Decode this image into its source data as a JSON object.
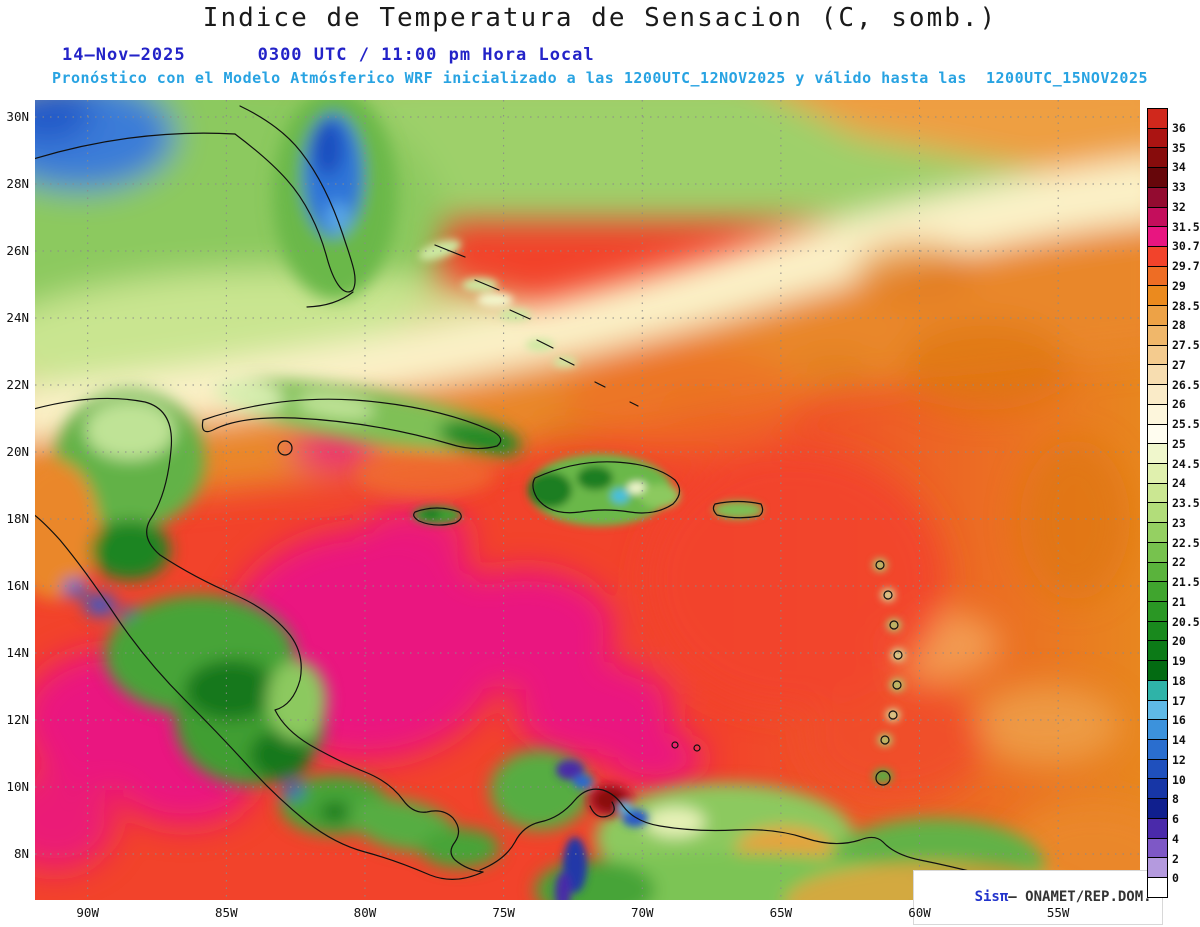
{
  "title": "Indice de Temperatura de Sensacion (C, somb.)",
  "subtitle": {
    "date": "14–Nov–2025",
    "time": "0300 UTC / 11:00 pm Hora Local",
    "forecast": "Pronóstico con el Modelo Atmósferico WRF inicializado a las 1200UTC_12NOV2025 y válido hasta las  1200UTC_15NOV2025"
  },
  "attribution": {
    "brand": "Sisπ",
    "rest": "– ONAMET/REP.DOM."
  },
  "colors": {
    "title": "#1a1a1a",
    "date_line": "#2323c8",
    "forecast_line": "#28a3e2",
    "brand": "#2233cc",
    "hot_magenta": "#e81580",
    "sea_red": "#f2432b",
    "atlantic_orange": "#e8861f"
  },
  "map": {
    "lat_ticks": [
      "30N",
      "28N",
      "26N",
      "24N",
      "22N",
      "20N",
      "18N",
      "16N",
      "14N",
      "12N",
      "10N",
      "8N"
    ],
    "lon_ticks": [
      "90W",
      "85W",
      "80W",
      "75W",
      "70W",
      "65W",
      "60W",
      "55W"
    ]
  },
  "colorbar": {
    "unit": "C",
    "labels": [
      "36",
      "35",
      "34",
      "33",
      "32",
      "31.5",
      "30.7",
      "29.7",
      "29",
      "28.5",
      "28",
      "27.5",
      "27",
      "26.5",
      "26",
      "25.5",
      "25",
      "24.5",
      "24",
      "23.5",
      "23",
      "22.5",
      "22",
      "21.5",
      "21",
      "20.5",
      "20",
      "19",
      "18",
      "17",
      "16",
      "14",
      "12",
      "10",
      "8",
      "6",
      "4",
      "2",
      "0"
    ],
    "colors": [
      "#d0281c",
      "#ab1412",
      "#870c0c",
      "#66060a",
      "#930b30",
      "#c40e5c",
      "#e81580",
      "#f2432b",
      "#ee6d24",
      "#eb8a1e",
      "#eda246",
      "#f0b76a",
      "#f4cb8e",
      "#f7ddb0",
      "#faebc8",
      "#fdf6dc",
      "#fffdf0",
      "#f0f7cc",
      "#e0f0ae",
      "#cbe792",
      "#b2dd7a",
      "#95d062",
      "#77c24e",
      "#5ab33c",
      "#40a52e",
      "#2a9724",
      "#19891d",
      "#0c7a17",
      "#036b12",
      "#2fb3a8",
      "#5fb9e6",
      "#3c92dc",
      "#2a6ecf",
      "#1f50bd",
      "#1736a6",
      "#101f8e",
      "#4a2aaa",
      "#7e58c6",
      "#b49ade",
      "#ffffff"
    ]
  }
}
